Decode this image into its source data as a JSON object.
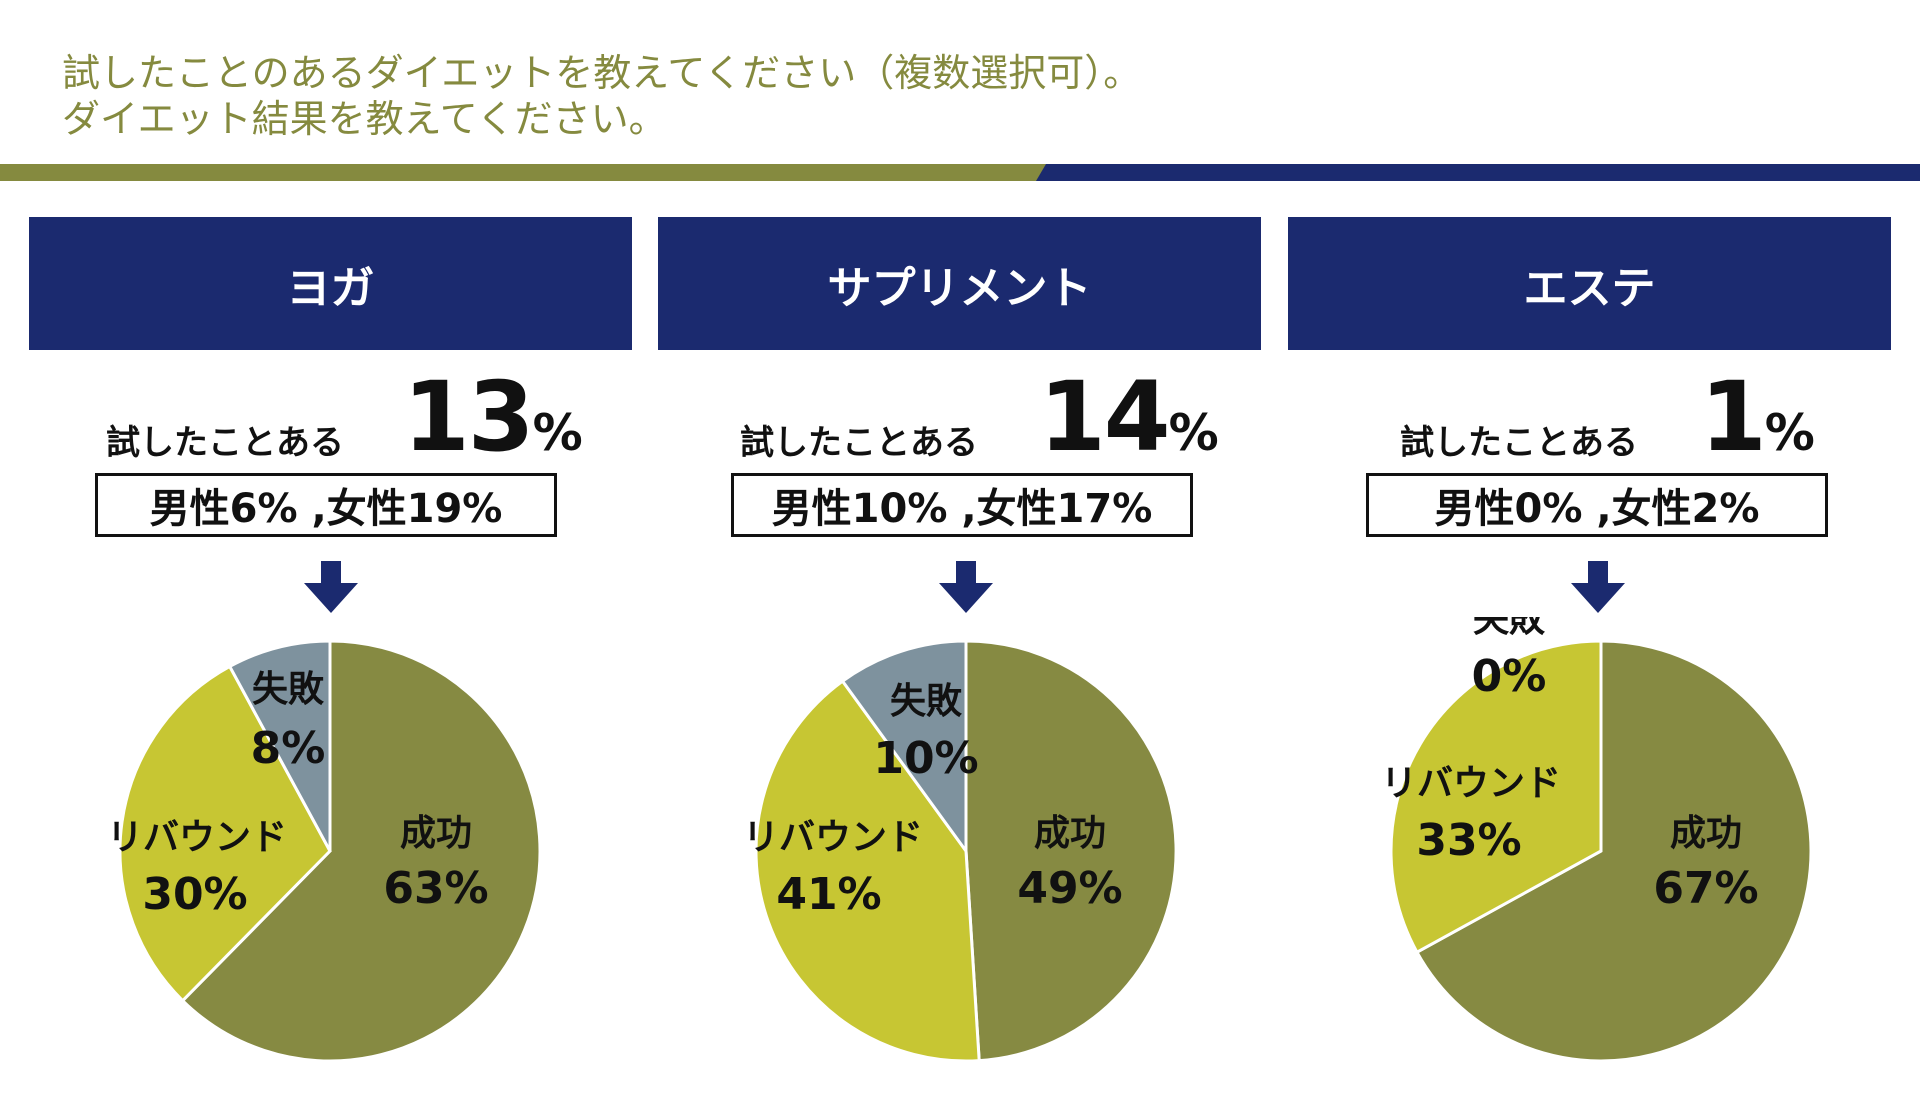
{
  "header": {
    "line1": "試したことのあるダイエットを教えてください（複数選択可）。",
    "line2": "ダイエット結果を教えてください。"
  },
  "colors": {
    "olive": "#858a3f",
    "navy": "#1b2a6f",
    "success": "#868a42",
    "rebound": "#c7c633",
    "failure": "#7e929e"
  },
  "chart_data": [
    {
      "type": "pie",
      "title": "ヨガ",
      "tried_label": "試したことある",
      "tried_value": "13",
      "tried_unit": "%",
      "gender_text": "男性6% ,女性19%",
      "slices": [
        {
          "name": "成功",
          "value": 63,
          "label": "63%",
          "color": "#868a42"
        },
        {
          "name": "リバウンド",
          "value": 30,
          "label": "30%",
          "color": "#c7c633"
        },
        {
          "name": "失敗",
          "value": 8,
          "label": "8%",
          "color": "#7e929e"
        }
      ]
    },
    {
      "type": "pie",
      "title": "サプリメント",
      "tried_label": "試したことある",
      "tried_value": "14",
      "tried_unit": "%",
      "gender_text": "男性10% ,女性17%",
      "slices": [
        {
          "name": "成功",
          "value": 49,
          "label": "49%",
          "color": "#868a42"
        },
        {
          "name": "リバウンド",
          "value": 41,
          "label": "41%",
          "color": "#c7c633"
        },
        {
          "name": "失敗",
          "value": 10,
          "label": "10%",
          "color": "#7e929e"
        }
      ]
    },
    {
      "type": "pie",
      "title": "エステ",
      "tried_label": "試したことある",
      "tried_value": "1",
      "tried_unit": "%",
      "gender_text": "男性0% ,女性2%",
      "slices": [
        {
          "name": "成功",
          "value": 67,
          "label": "67%",
          "color": "#868a42"
        },
        {
          "name": "リバウンド",
          "value": 33,
          "label": "33%",
          "color": "#c7c633"
        },
        {
          "name": "失敗",
          "value": 0,
          "label": "0%",
          "color": "#7e929e"
        }
      ]
    }
  ]
}
